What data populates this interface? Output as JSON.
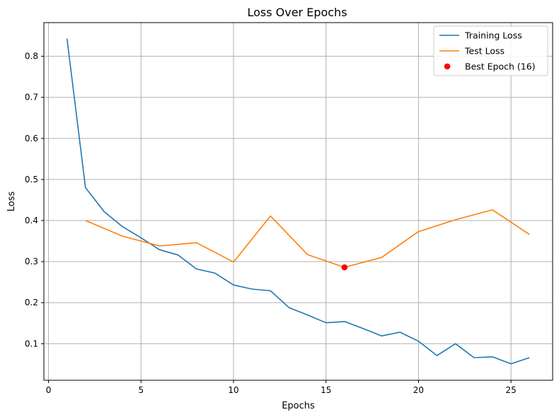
{
  "chart_data": {
    "type": "line",
    "title": "Loss Over Epochs",
    "xlabel": "Epochs",
    "ylabel": "Loss",
    "xlim": [
      -0.25,
      27.25
    ],
    "ylim": [
      0.011,
      0.882
    ],
    "xticks": [
      0,
      5,
      10,
      15,
      20,
      25
    ],
    "yticks": [
      0.1,
      0.2,
      0.3,
      0.4,
      0.5,
      0.6,
      0.7,
      0.8
    ],
    "grid": true,
    "legend_position": "top-right",
    "series": [
      {
        "name": "Training Loss",
        "color": "#1f77b4",
        "x": [
          1,
          2,
          3,
          4,
          5,
          6,
          7,
          8,
          9,
          10,
          11,
          12,
          13,
          14,
          15,
          16,
          17,
          18,
          19,
          20,
          21,
          22,
          23,
          24,
          25,
          26
        ],
        "y": [
          0.843,
          0.48,
          0.422,
          0.385,
          0.358,
          0.329,
          0.316,
          0.282,
          0.272,
          0.243,
          0.233,
          0.229,
          0.188,
          0.17,
          0.151,
          0.154,
          0.137,
          0.119,
          0.128,
          0.106,
          0.071,
          0.1,
          0.066,
          0.068,
          0.051,
          0.066
        ]
      },
      {
        "name": "Test Loss",
        "color": "#ff7f0e",
        "x": [
          2,
          4,
          6,
          8,
          10,
          12,
          14,
          16,
          18,
          20,
          22,
          24,
          26
        ],
        "y": [
          0.4,
          0.362,
          0.338,
          0.346,
          0.299,
          0.411,
          0.317,
          0.286,
          0.31,
          0.373,
          0.402,
          0.426,
          0.366
        ]
      }
    ],
    "markers": [
      {
        "name": "Best Epoch (16)",
        "color": "#ff0000",
        "x": 16,
        "y": 0.286
      }
    ]
  }
}
